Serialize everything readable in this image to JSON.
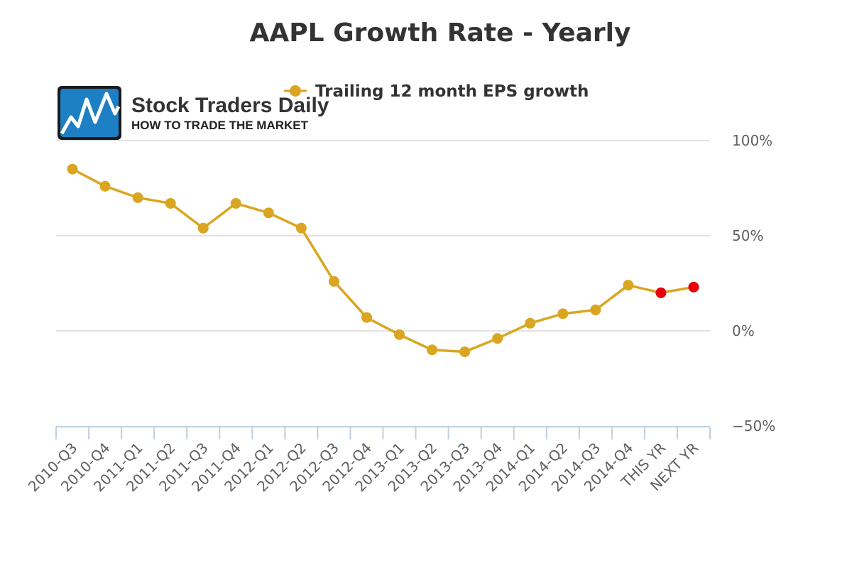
{
  "logo": {
    "name": "Stock Traders Daily",
    "tagline": "HOW TO TRADE THE MARKET"
  },
  "chart_data": {
    "type": "line",
    "title": "AAPL Growth Rate - Yearly",
    "categories": [
      "2010-Q3",
      "2010-Q4",
      "2011-Q1",
      "2011-Q2",
      "2011-Q3",
      "2011-Q4",
      "2012-Q1",
      "2012-Q2",
      "2012-Q3",
      "2012-Q4",
      "2013-Q1",
      "2013-Q2",
      "2013-Q3",
      "2013-Q4",
      "2014-Q1",
      "2014-Q2",
      "2014-Q3",
      "2014-Q4",
      "THIS YR",
      "NEXT YR"
    ],
    "series": [
      {
        "name": "Trailing 12 month EPS growth",
        "color": "#DAA520",
        "values": [
          85,
          76,
          70,
          67,
          54,
          67,
          62,
          54,
          26,
          7,
          -2,
          -10,
          -11,
          -4,
          4,
          9,
          11,
          24,
          20,
          23
        ],
        "estimate_color": "#E8000B",
        "estimate_points": [
          "THIS YR",
          "NEXT YR"
        ]
      }
    ],
    "yticks": [
      "100%",
      "50%",
      "0%",
      "−50%"
    ],
    "ytick_values": [
      100,
      50,
      0,
      -50
    ],
    "ylim": [
      -50,
      100
    ],
    "xlabel": "",
    "ylabel": "",
    "grid": true,
    "legend_position": "top-center"
  }
}
